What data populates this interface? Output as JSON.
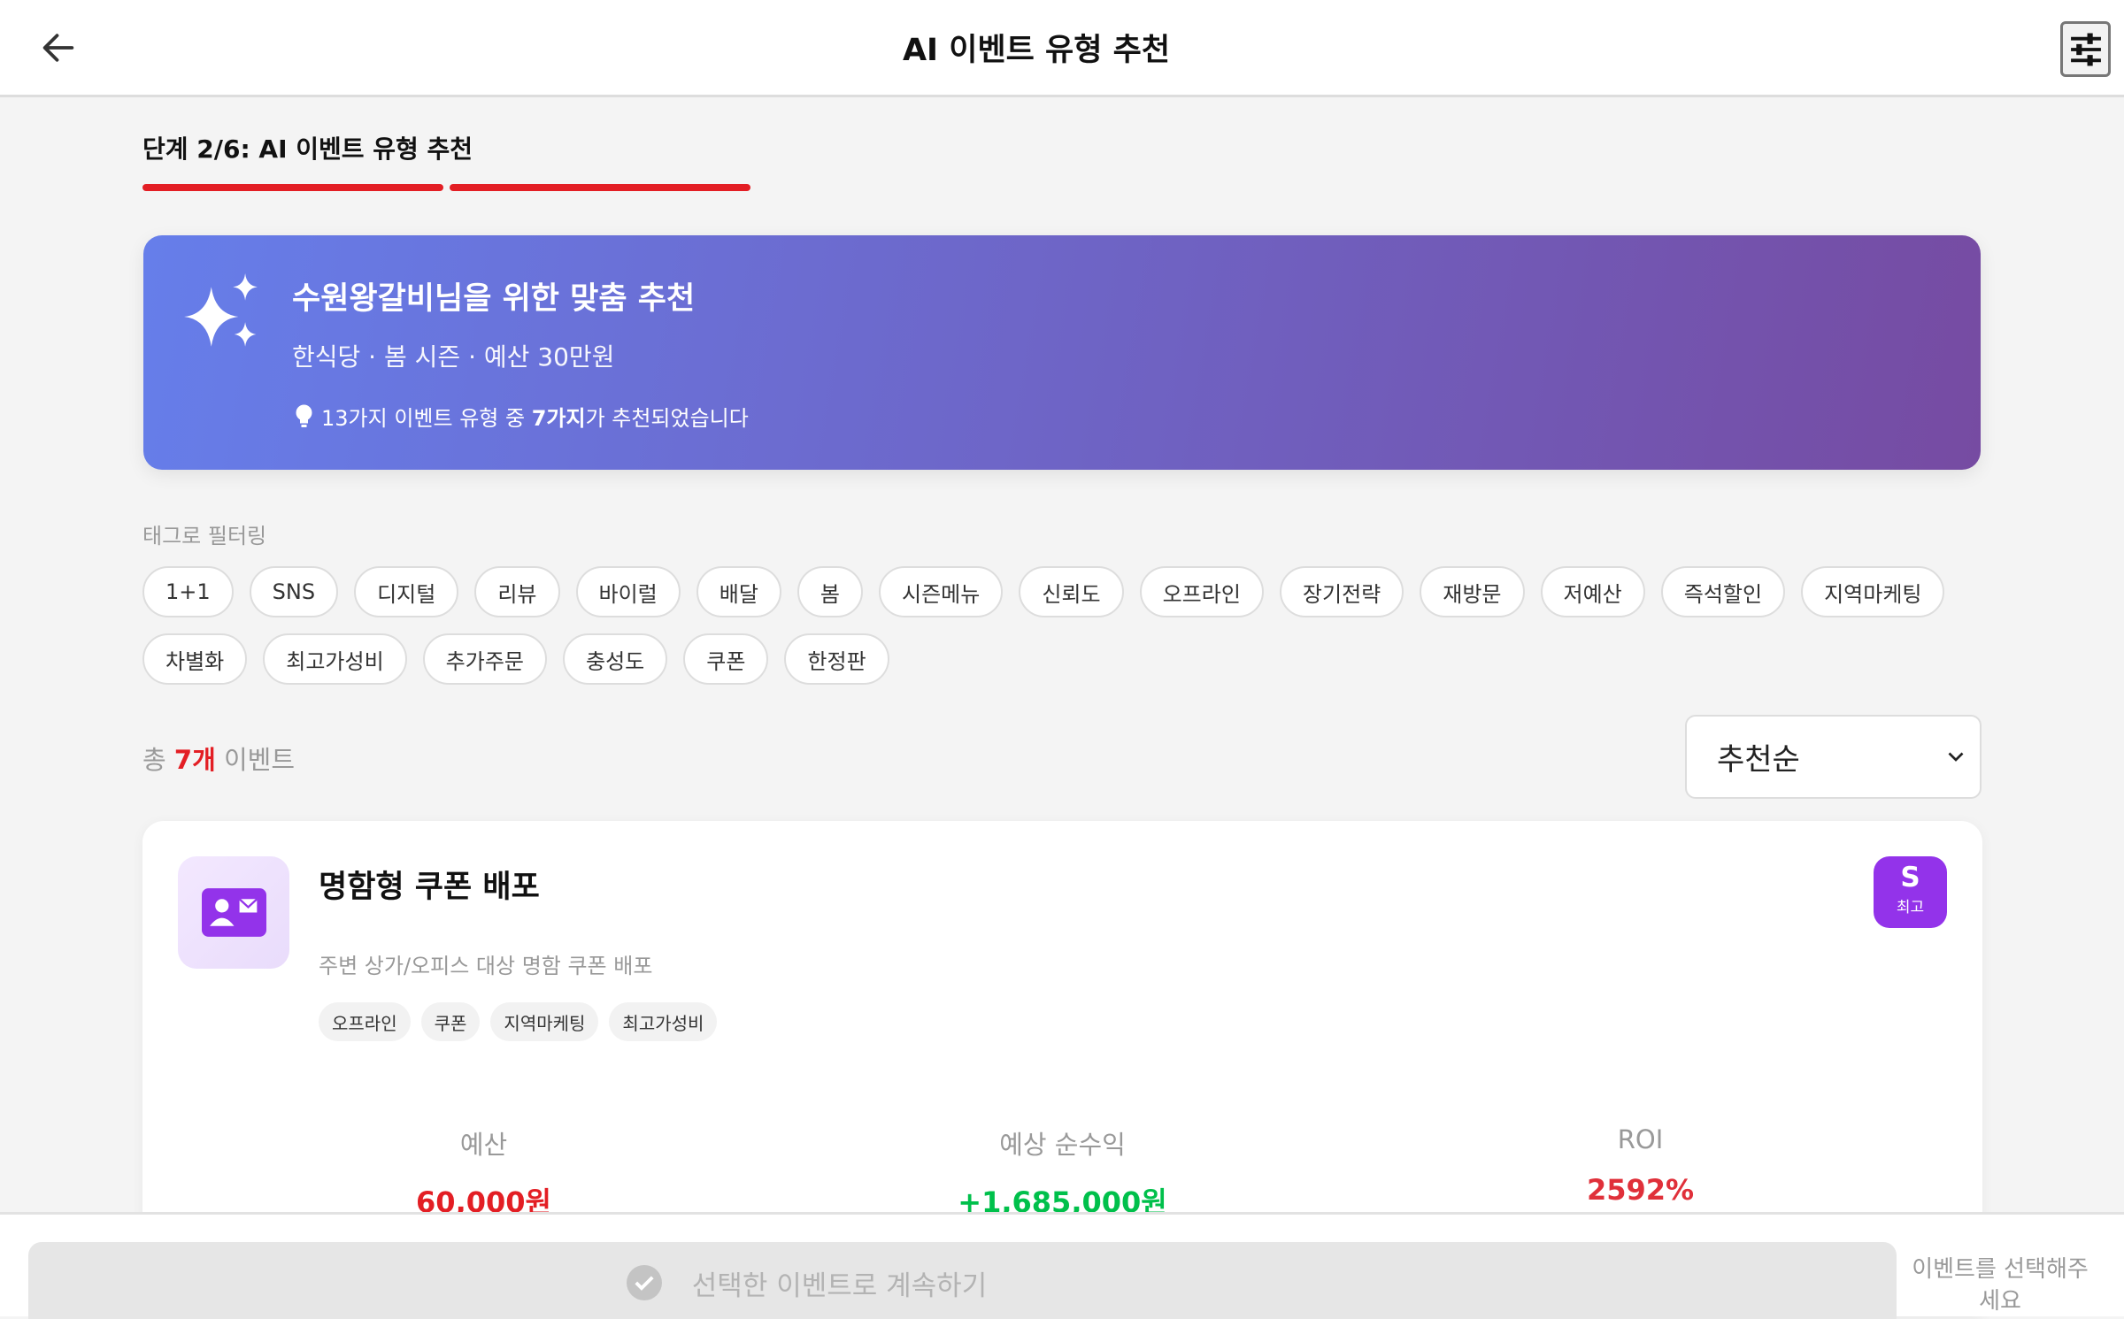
{
  "header": {
    "title": "AI 이벤트 유형 추천",
    "back_icon": "arrow-left-icon",
    "filter_icon": "sliders-icon"
  },
  "step": {
    "label": "단계 2/6: AI 이벤트 유형 추천",
    "current": 2,
    "total": 6,
    "color": "#e31e24"
  },
  "banner": {
    "title": "수원왕갈비님을 위한 맞춤 추천",
    "subtitle": "한식당 · 봄 시즌 · 예산 30만원",
    "tip_prefix": "13가지 이벤트 유형 중 ",
    "tip_bold": "7가지",
    "tip_suffix": "가 추천되었습니다",
    "gradient": [
      "#667eea",
      "#764ba2"
    ]
  },
  "filter": {
    "label": "태그로 필터링",
    "tags": [
      "1+1",
      "SNS",
      "디지털",
      "리뷰",
      "바이럴",
      "배달",
      "봄",
      "시즌메뉴",
      "신뢰도",
      "오프라인",
      "장기전략",
      "재방문",
      "저예산",
      "즉석할인",
      "지역마케팅",
      "차별화",
      "최고가성비",
      "추가주문",
      "충성도",
      "쿠폰",
      "한정판"
    ]
  },
  "results": {
    "prefix": "총 ",
    "count": "7개",
    "suffix": " 이벤트",
    "sort": "추천순"
  },
  "card": {
    "title": "명함형 쿠폰 배포",
    "description": "주변 상가/오피스 대상 명함 쿠폰 배포",
    "tags": [
      "오프라인",
      "쿠폰",
      "지역마케팅",
      "최고가성비"
    ],
    "grade": "S",
    "grade_label": "최고",
    "stats": [
      {
        "label": "예산",
        "value": "60,000원",
        "color": "#e31e24"
      },
      {
        "label": "예상 순수익",
        "value": "+1,685,000원",
        "color": "#00c04b"
      },
      {
        "label": "ROI",
        "value": "2592%",
        "color": "#e0303a"
      }
    ]
  },
  "footer": {
    "button": "선택한 이벤트로 계속하기",
    "hint": "이벤트를 선택해주세요"
  }
}
